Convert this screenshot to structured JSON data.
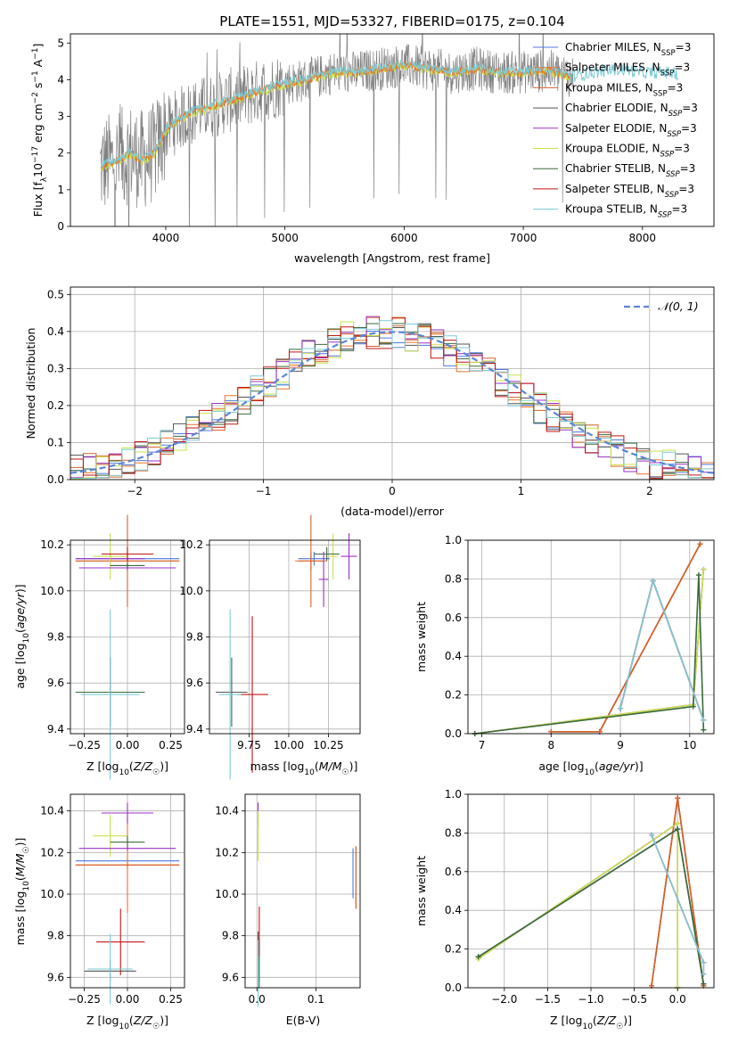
{
  "title": "PLATE=1551, MJD=53327, FIBERID=0175, z=0.104",
  "colors": {
    "Chabrier MILES": "#4c78e0",
    "Salpeter MILES": "#e8742c",
    "Kroupa MILES": "#d4622a",
    "Chabrier ELODIE": "#555555",
    "Salpeter ELODIE": "#9b30c8",
    "Kroupa ELODIE": "#c9e04a",
    "Chabrier STELIB": "#3a6a3a",
    "Salpeter STELIB": "#c01515",
    "Kroupa STELIB": "#7ccbd6",
    "data": "#808080",
    "normal": "#5b86d6",
    "grid": "#b0b0b0"
  },
  "legend_labels": [
    "Chabrier MILES, N_SSP=3",
    "Salpeter MILES, N_SSP=3",
    "Kroupa MILES, N_SSP=3",
    "Chabrier ELODIE, N_SSP=3",
    "Salpeter ELODIE, N_SSP=3",
    "Kroupa ELODIE, N_SSP=3",
    "Chabrier STELIB, N_SSP=3",
    "Salpeter STELIB, N_SSP=3",
    "Kroupa STELIB, N_SSP=3"
  ],
  "chart_data": [
    {
      "id": "spectrum",
      "type": "line",
      "xlabel": "wavelength [Angstrom, rest frame]",
      "ylabel": "Flux [f_λ 10^-17 erg cm^-2 s^-1 A^-1]",
      "xlim": [
        3200,
        8600
      ],
      "ylim": [
        0,
        5.25
      ],
      "xticks": [
        4000,
        5000,
        6000,
        7000,
        8000
      ],
      "yticks": [
        0,
        1,
        2,
        3,
        4,
        5
      ],
      "continuum": {
        "x": [
          3450,
          3500,
          3600,
          3700,
          3800,
          3900,
          4000,
          4100,
          4200,
          4400,
          4600,
          4800,
          5000,
          5200,
          5400,
          5600,
          5800,
          6000,
          6200,
          6400,
          6600,
          6800,
          7000,
          7200,
          7400,
          7600,
          7800,
          8000,
          8200,
          8300
        ],
        "y": [
          1.6,
          1.7,
          1.8,
          2.0,
          1.8,
          2.0,
          2.6,
          2.9,
          3.1,
          3.3,
          3.5,
          3.7,
          3.9,
          4.0,
          4.2,
          4.2,
          4.3,
          4.4,
          4.3,
          4.2,
          4.3,
          4.2,
          4.2,
          4.25,
          4.1,
          4.2,
          4.3,
          4.2,
          4.2,
          4.15
        ]
      },
      "grid": false,
      "legend_position": "upper-right"
    },
    {
      "id": "residuals",
      "type": "histogram",
      "xlabel": "(data-model)/error",
      "ylabel": "Normed distribution",
      "xlim": [
        -2.5,
        2.5
      ],
      "ylim": [
        0,
        0.52
      ],
      "xticks": [
        -2,
        -1,
        0,
        1,
        2
      ],
      "yticks": [
        0.0,
        0.1,
        0.2,
        0.3,
        0.4,
        0.5
      ],
      "bin_edges_start": -2.5,
      "bin_width": 0.1,
      "reference_curve": {
        "name": "𝒩(0, 1)",
        "mean": 0,
        "sigma": 1
      },
      "grid": true,
      "legend_position": "upper-right"
    },
    {
      "id": "age-vs-Z",
      "type": "errorbar",
      "xlabel": "Z [log10(Z/Z☉)]",
      "ylabel": "age  [log10(age/yr)]",
      "xlim": [
        -0.33,
        0.33
      ],
      "ylim": [
        9.38,
        10.22
      ],
      "xticks": [
        -0.25,
        0.0,
        0.25
      ],
      "xtick_labels": [
        "−0.25",
        "0.00",
        "0.25"
      ],
      "yticks": [
        9.4,
        9.6,
        9.8,
        10.0,
        10.2
      ],
      "ytick_labels": [
        "9.4",
        "9.6",
        "9.8",
        "10.0",
        "10.2"
      ],
      "points": [
        {
          "model": "Chabrier MILES",
          "x": 0.0,
          "xerr": 0.3,
          "y": 10.14,
          "yerr": 0.03
        },
        {
          "model": "Salpeter MILES",
          "x": 0.0,
          "xerr": 0.3,
          "y": 10.13,
          "yerr": 0.04
        },
        {
          "model": "Kroupa MILES",
          "x": 0.0,
          "xerr": 0.3,
          "y": 10.13,
          "yerr": 0.2
        },
        {
          "model": "Chabrier ELODIE",
          "x": -0.1,
          "xerr": 0.15,
          "y": 9.56,
          "yerr": 0.15
        },
        {
          "model": "Salpeter ELODIE",
          "x": -0.1,
          "xerr": 0.2,
          "y": 10.14,
          "yerr": 0.02
        },
        {
          "model": "Kroupa ELODIE",
          "x": -0.1,
          "xerr": 0.1,
          "y": 10.15,
          "yerr": 0.1
        },
        {
          "model": "Chabrier STELIB",
          "x": -0.1,
          "xerr": 0.2,
          "y": 9.56,
          "yerr": 0.15
        },
        {
          "model": "Salpeter STELIB",
          "x": 0.0,
          "xerr": 0.15,
          "y": 10.16,
          "yerr": 0.03
        },
        {
          "model": "Kroupa STELIB",
          "x": -0.1,
          "xerr": 0.17,
          "y": 9.55,
          "yerr": 0.37
        },
        {
          "model": "Salpeter ELODIE",
          "x": 0.0,
          "xerr": 0.28,
          "y": 10.1,
          "yerr": 0.01
        },
        {
          "model": "Chabrier STELIB",
          "x": 0.0,
          "xerr": 0.1,
          "y": 10.11,
          "yerr": 0.01
        }
      ],
      "grid": true
    },
    {
      "id": "age-vs-mass",
      "type": "errorbar",
      "xlabel": "mass [log10(M/M☉)]",
      "ylabel": "",
      "xlim": [
        9.5,
        10.45
      ],
      "ylim": [
        9.38,
        10.22
      ],
      "xticks": [
        9.75,
        10.0,
        10.25
      ],
      "xtick_labels": [
        "9.75",
        "10.00",
        "10.25"
      ],
      "yticks": [
        9.4,
        9.6,
        9.8,
        10.0,
        10.2
      ],
      "ytick_labels": [
        "9.4",
        "9.6",
        "9.8",
        "10.0",
        "10.2"
      ],
      "points": [
        {
          "model": "Chabrier MILES",
          "x": 10.16,
          "xerr": 0.1,
          "y": 10.14,
          "yerr": 0.03
        },
        {
          "model": "Salpeter MILES",
          "x": 10.14,
          "xerr": 0.1,
          "y": 10.13,
          "yerr": 0.04
        },
        {
          "model": "Kroupa MILES",
          "x": 10.14,
          "xerr": 0.08,
          "y": 10.13,
          "yerr": 0.2
        },
        {
          "model": "Chabrier ELODIE",
          "x": 9.64,
          "xerr": 0.1,
          "y": 9.56,
          "yerr": 0.15
        },
        {
          "model": "Salpeter ELODIE",
          "x": 10.38,
          "xerr": 0.05,
          "y": 10.15,
          "yerr": 0.1
        },
        {
          "model": "Kroupa ELODIE",
          "x": 10.28,
          "xerr": 0.03,
          "y": 10.15,
          "yerr": 0.1
        },
        {
          "model": "Chabrier STELIB",
          "x": 10.24,
          "xerr": 0.08,
          "y": 10.16,
          "yerr": 0.03
        },
        {
          "model": "Salpeter STELIB",
          "x": 9.77,
          "xerr": 0.1,
          "y": 9.55,
          "yerr": 0.34
        },
        {
          "model": "Kroupa STELIB",
          "x": 9.63,
          "xerr": 0.07,
          "y": 9.55,
          "yerr": 0.37
        },
        {
          "model": "Salpeter ELODIE",
          "x": 10.22,
          "xerr": 0.03,
          "y": 10.05,
          "yerr": 0.12
        }
      ],
      "grid": true
    },
    {
      "id": "weight-vs-age",
      "type": "line",
      "xlabel": "age  [log10(age/yr)]",
      "ylabel": "mass weight",
      "xlim": [
        6.8,
        10.35
      ],
      "ylim": [
        0,
        1.0
      ],
      "xticks": [
        7,
        8,
        9,
        10
      ],
      "yticks": [
        0.0,
        0.2,
        0.4,
        0.6,
        0.8,
        1.0
      ],
      "series": [
        {
          "model": "Chabrier MILES",
          "x": [
            8.0,
            8.7,
            10.15
          ],
          "y": [
            0.01,
            0.01,
            0.98
          ]
        },
        {
          "model": "Salpeter MILES",
          "x": [
            8.0,
            8.7,
            10.15
          ],
          "y": [
            0.01,
            0.01,
            0.98
          ]
        },
        {
          "model": "Kroupa MILES",
          "x": [
            8.0,
            8.7,
            10.15
          ],
          "y": [
            0.01,
            0.01,
            0.98
          ]
        },
        {
          "model": "Chabrier ELODIE",
          "x": [
            9.0,
            9.47,
            10.2
          ],
          "y": [
            0.13,
            0.79,
            0.07
          ]
        },
        {
          "model": "Salpeter ELODIE",
          "x": [
            6.9,
            10.05,
            10.2
          ],
          "y": [
            0.0,
            0.15,
            0.85
          ]
        },
        {
          "model": "Kroupa ELODIE",
          "x": [
            6.9,
            10.05,
            10.2
          ],
          "y": [
            0.0,
            0.15,
            0.85
          ]
        },
        {
          "model": "Chabrier STELIB",
          "x": [
            6.9,
            10.05,
            10.13,
            10.2
          ],
          "y": [
            0.0,
            0.14,
            0.82,
            0.02
          ]
        },
        {
          "model": "Salpeter STELIB",
          "x": [
            9.0,
            9.47,
            10.2
          ],
          "y": [
            0.13,
            0.79,
            0.07
          ]
        },
        {
          "model": "Kroupa STELIB",
          "x": [
            9.0,
            9.47,
            10.2
          ],
          "y": [
            0.13,
            0.79,
            0.07
          ]
        }
      ],
      "grid": true
    },
    {
      "id": "mass-vs-Z",
      "type": "errorbar",
      "xlabel": "Z [log10(Z/Z☉)]",
      "ylabel": "mass [log10(M/M☉)]",
      "xlim": [
        -0.33,
        0.33
      ],
      "ylim": [
        9.55,
        10.48
      ],
      "xticks": [
        -0.25,
        0.0,
        0.25
      ],
      "xtick_labels": [
        "−0.25",
        "0.00",
        "0.25"
      ],
      "yticks": [
        9.6,
        9.8,
        10.0,
        10.2,
        10.4
      ],
      "ytick_labels": [
        "9.6",
        "9.8",
        "10.0",
        "10.2",
        "10.4"
      ],
      "points": [
        {
          "model": "Chabrier MILES",
          "x": 0.0,
          "xerr": 0.3,
          "y": 10.16,
          "yerr": 0.01
        },
        {
          "model": "Salpeter MILES",
          "x": 0.0,
          "xerr": 0.3,
          "y": 10.14,
          "yerr": 0.23
        },
        {
          "model": "Kroupa MILES",
          "x": 0.0,
          "xerr": 0.3,
          "y": 10.14,
          "yerr": 0.01
        },
        {
          "model": "Chabrier ELODIE",
          "x": -0.1,
          "xerr": 0.15,
          "y": 9.63,
          "yerr": 0.05
        },
        {
          "model": "Salpeter ELODIE",
          "x": 0.0,
          "xerr": 0.15,
          "y": 10.39,
          "yerr": 0.05
        },
        {
          "model": "Kroupa ELODIE",
          "x": -0.1,
          "xerr": 0.1,
          "y": 10.28,
          "yerr": 0.1
        },
        {
          "model": "Chabrier STELIB",
          "x": 0.0,
          "xerr": 0.1,
          "y": 10.25,
          "yerr": 0.03
        },
        {
          "model": "Salpeter STELIB",
          "x": -0.04,
          "xerr": 0.14,
          "y": 9.77,
          "yerr": 0.16
        },
        {
          "model": "Kroupa STELIB",
          "x": -0.1,
          "xerr": 0.13,
          "y": 9.64,
          "yerr": 0.17
        },
        {
          "model": "Salpeter ELODIE",
          "x": 0.0,
          "xerr": 0.28,
          "y": 10.22,
          "yerr": 0.01
        }
      ],
      "grid": true
    },
    {
      "id": "mass-vs-EBV",
      "type": "errorbar",
      "xlabel": "E(B-V)",
      "ylabel": "",
      "xlim": [
        -0.02,
        0.175
      ],
      "ylim": [
        9.55,
        10.48
      ],
      "xticks": [
        0.0,
        0.1
      ],
      "xtick_labels": [
        "0.0",
        "0.1"
      ],
      "yticks": [
        9.6,
        9.8,
        10.0,
        10.2,
        10.4
      ],
      "ytick_labels": [
        "9.6",
        "9.8",
        "10.0",
        "10.2",
        "10.4"
      ],
      "points": [
        {
          "model": "Chabrier MILES",
          "x": 0.163,
          "xerr": 0.0,
          "y": 10.1,
          "yerr": 0.12
        },
        {
          "model": "Salpeter MILES",
          "x": 0.168,
          "xerr": 0.0,
          "y": 10.08,
          "yerr": 0.15
        },
        {
          "model": "Kroupa MILES",
          "x": 0.168,
          "xerr": 0.0,
          "y": 10.08,
          "yerr": 0.15
        },
        {
          "model": "Chabrier ELODIE",
          "x": 0.002,
          "xerr": 0.0,
          "y": 9.7,
          "yerr": 0.12
        },
        {
          "model": "Salpeter ELODIE",
          "x": 0.002,
          "xerr": 0.0,
          "y": 10.38,
          "yerr": 0.06
        },
        {
          "model": "Kroupa ELODIE",
          "x": 0.002,
          "xerr": 0.0,
          "y": 10.28,
          "yerr": 0.12
        },
        {
          "model": "Chabrier STELIB",
          "x": 0.004,
          "xerr": 0.0,
          "y": 9.67,
          "yerr": 0.12
        },
        {
          "model": "Salpeter STELIB",
          "x": 0.004,
          "xerr": 0.0,
          "y": 9.82,
          "yerr": 0.12
        },
        {
          "model": "Kroupa STELIB",
          "x": 0.002,
          "xerr": 0.0,
          "y": 9.62,
          "yerr": 0.16
        }
      ],
      "grid": true
    },
    {
      "id": "weight-vs-Z",
      "type": "line",
      "xlabel": "Z [log10(Z/Z☉)]",
      "ylabel": "mass weight",
      "xlim": [
        -2.42,
        0.42
      ],
      "ylim": [
        0,
        1.0
      ],
      "xticks": [
        -2.0,
        -1.5,
        -1.0,
        -0.5,
        0.0
      ],
      "xtick_labels": [
        "−2.0",
        "−1.5",
        "−1.0",
        "−0.5",
        "0.0"
      ],
      "yticks": [
        0.0,
        0.2,
        0.4,
        0.6,
        0.8,
        1.0
      ],
      "series": [
        {
          "model": "Chabrier MILES",
          "x": [
            -0.3,
            0.0,
            0.3
          ],
          "y": [
            0.01,
            0.98,
            0.01
          ]
        },
        {
          "model": "Salpeter MILES",
          "x": [
            -0.3,
            0.0,
            0.3
          ],
          "y": [
            0.01,
            0.98,
            0.01
          ]
        },
        {
          "model": "Kroupa MILES",
          "x": [
            -0.3,
            0.0,
            0.3
          ],
          "y": [
            0.01,
            0.98,
            0.01
          ]
        },
        {
          "model": "Chabrier ELODIE",
          "x": [
            -2.3,
            0.0,
            0.3
          ],
          "y": [
            0.16,
            0.82,
            0.02
          ]
        },
        {
          "model": "Salpeter ELODIE",
          "x": [
            -2.3,
            0.0,
            0.0
          ],
          "y": [
            0.15,
            0.85,
            0.0
          ]
        },
        {
          "model": "Kroupa ELODIE",
          "x": [
            -2.3,
            0.0,
            0.0
          ],
          "y": [
            0.15,
            0.85,
            0.0
          ]
        },
        {
          "model": "Chabrier STELIB",
          "x": [
            -2.3,
            0.0,
            0.3
          ],
          "y": [
            0.16,
            0.82,
            0.02
          ]
        },
        {
          "model": "Salpeter STELIB",
          "x": [
            -0.3,
            0.3,
            0.3
          ],
          "y": [
            0.79,
            0.13,
            0.07
          ]
        },
        {
          "model": "Kroupa STELIB",
          "x": [
            -0.3,
            0.3,
            0.3
          ],
          "y": [
            0.79,
            0.13,
            0.07
          ]
        }
      ],
      "grid": true
    }
  ]
}
